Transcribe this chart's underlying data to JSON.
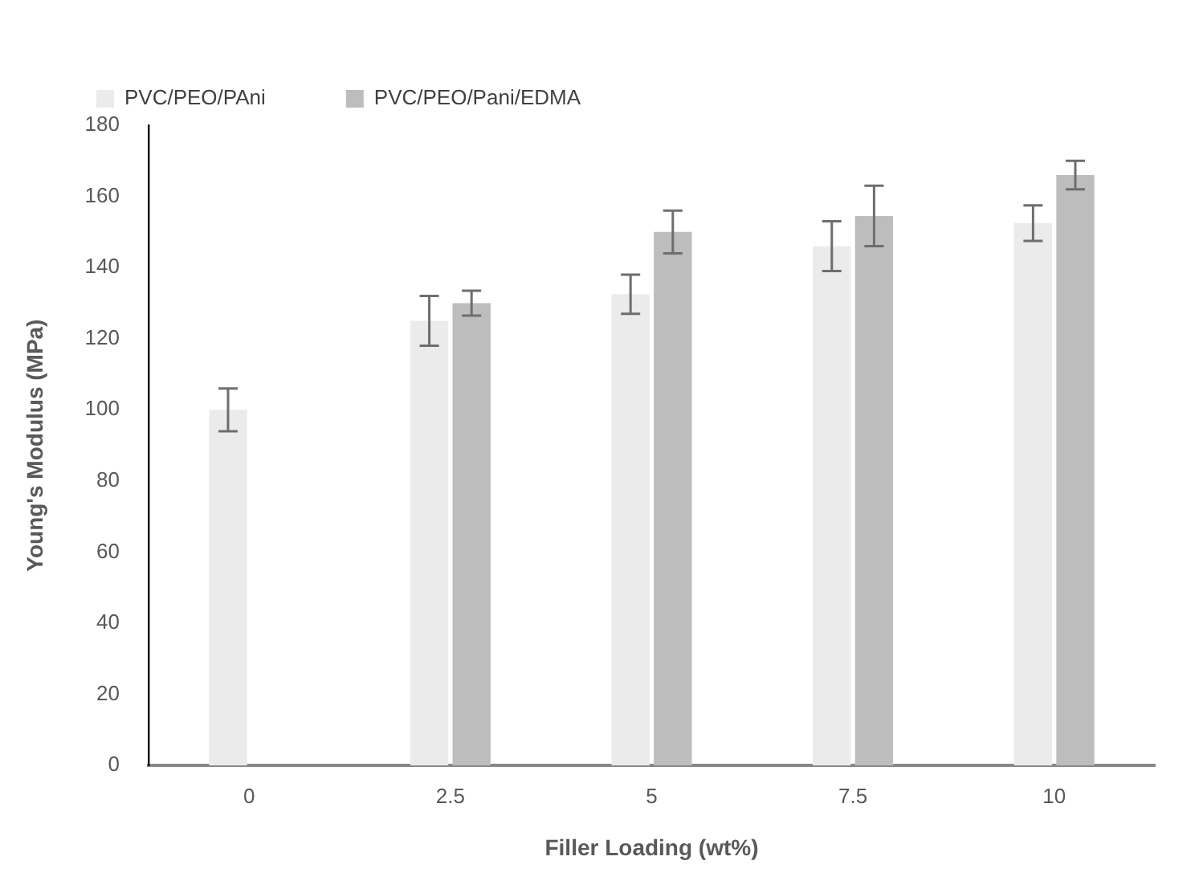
{
  "chart_data": {
    "type": "bar",
    "xlabel": "Filler Loading (wt%)",
    "ylabel": "Young's Modulus (MPa)",
    "categories": [
      "0",
      "2.5",
      "5",
      "7.5",
      "10"
    ],
    "series": [
      {
        "name": "PVC/PEO/PAni",
        "color": "#ebebeb",
        "values": [
          100,
          125,
          132.5,
          146,
          152.5
        ],
        "errors": [
          6,
          7,
          5.5,
          7,
          5
        ]
      },
      {
        "name": "PVC/PEO/Pani/EDMA",
        "color": "#bdbdbd",
        "values": [
          null,
          130,
          150,
          154.5,
          166
        ],
        "errors": [
          null,
          3.5,
          6,
          8.5,
          4
        ]
      }
    ],
    "ylim": [
      0,
      180
    ],
    "yticks": [
      0,
      20,
      40,
      60,
      80,
      100,
      120,
      140,
      160,
      180
    ],
    "grid": false,
    "legend": "top"
  }
}
